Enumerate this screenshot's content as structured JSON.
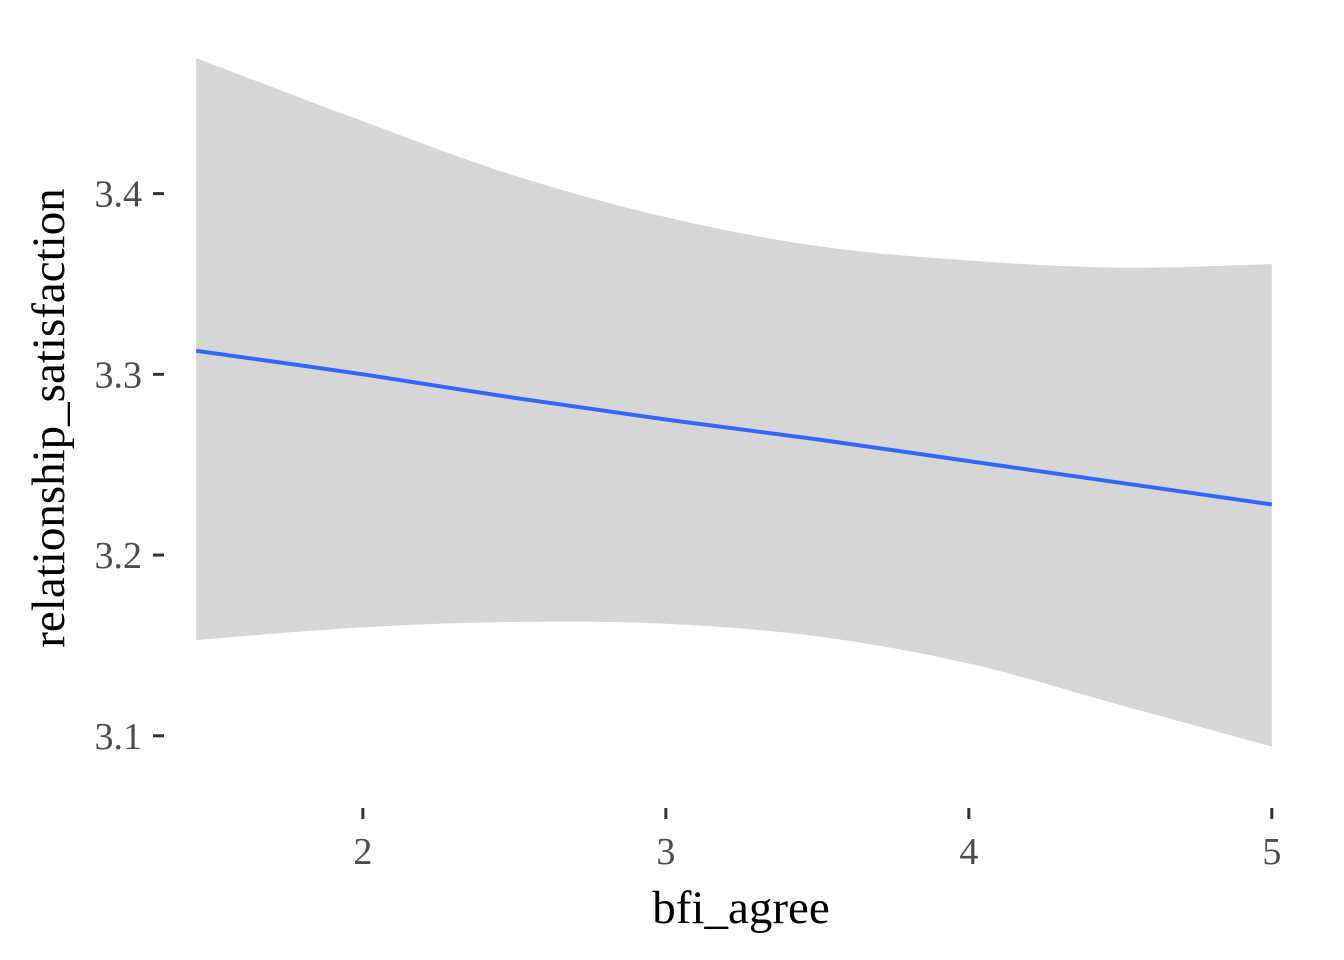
{
  "chart_data": {
    "type": "line",
    "title": "",
    "xlabel": "bfi_agree",
    "ylabel": "relationship_satisfaction",
    "xlim": [
      1.38,
      5.06
    ],
    "ylim": [
      3.07,
      3.485
    ],
    "x_ticks": [
      2,
      3,
      4,
      5
    ],
    "x_tick_labels": [
      "2",
      "3",
      "4",
      "5"
    ],
    "y_ticks": [
      3.1,
      3.2,
      3.3,
      3.4
    ],
    "y_tick_labels": [
      "3.1",
      "3.2",
      "3.3",
      "3.4"
    ],
    "grid": false,
    "legend": "none",
    "colors": {
      "line": "#3366ff",
      "ribbon": "#d6d6d6",
      "ticks": "#333333",
      "tick_text": "#4d4d4d"
    },
    "series": [
      {
        "x": [
          1.45,
          2.0,
          2.5,
          3.0,
          3.5,
          4.0,
          4.5,
          5.0
        ],
        "y": [
          3.313,
          3.3,
          3.287,
          3.275,
          3.264,
          3.252,
          3.24,
          3.228
        ],
        "ci_lower": [
          3.153,
          3.16,
          3.163,
          3.162,
          3.155,
          3.14,
          3.117,
          3.094
        ],
        "ci_upper": [
          3.475,
          3.44,
          3.41,
          3.387,
          3.371,
          3.363,
          3.359,
          3.361
        ]
      }
    ]
  }
}
